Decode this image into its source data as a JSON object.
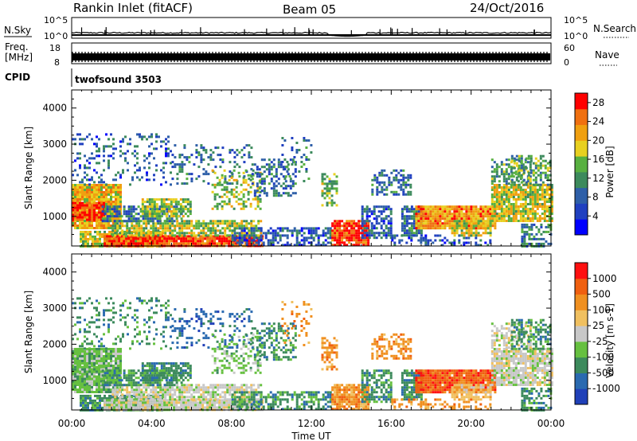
{
  "header": {
    "title": "Rankin Inlet (fitACF)",
    "beam": "Beam 05",
    "date": "24/Oct/2016"
  },
  "chart_data": [
    {
      "type": "line",
      "panel": "noise",
      "left_label": "N.Sky",
      "right_label": "N.Search",
      "yticks_left": [
        "10^5",
        "10^0"
      ],
      "yticks_right": [
        "10^5",
        "10^0"
      ],
      "baseline": "10^0"
    },
    {
      "type": "line",
      "panel": "frequency",
      "left_label_1": "Freq.",
      "left_label_2": "[MHz]",
      "right_label": "Nave",
      "yticks_left": [
        "18",
        "8"
      ],
      "yticks_right": [
        "60",
        "0"
      ],
      "ylim_left": [
        8,
        18
      ],
      "ylim_right": [
        0,
        60
      ]
    },
    {
      "type": "table",
      "panel": "cpid",
      "label": "CPID",
      "value": "twofsound 3503"
    },
    {
      "type": "heatmap",
      "panel": "power",
      "ylabel": "Slant Range [km]",
      "yticks": [
        "4000",
        "3000",
        "2000",
        "1000"
      ],
      "ylim": [
        180,
        4500
      ],
      "xticks": [
        "00:00",
        "04:00",
        "08:00",
        "12:00",
        "16:00",
        "20:00",
        "00:00"
      ],
      "xlim_hours": [
        0,
        24
      ],
      "colorbar_label": "Power [dB]",
      "colorbar_ticks": [
        "28",
        "24",
        "20",
        "16",
        "12",
        "8",
        "4"
      ],
      "colorbar_range": [
        0,
        30
      ],
      "colorbar_colors": [
        "#0000ff",
        "#2040c0",
        "#2e5fa8",
        "#3c8a5c",
        "#58b040",
        "#e8d020",
        "#f0a010",
        "#f07010",
        "#ff0000"
      ]
    },
    {
      "type": "heatmap",
      "panel": "velocity",
      "ylabel": "Slant Range [km]",
      "yticks": [
        "4000",
        "3000",
        "2000",
        "1000"
      ],
      "ylim": [
        180,
        4500
      ],
      "xticks": [
        "00:00",
        "04:00",
        "08:00",
        "12:00",
        "16:00",
        "20:00",
        "00:00"
      ],
      "xlim_hours": [
        0,
        24
      ],
      "xlabel": "Time UT",
      "colorbar_label": "Velocity [m s-1]",
      "colorbar_ticks": [
        "1000",
        "500",
        "100",
        "25",
        "-25",
        "-100",
        "-500",
        "-1000"
      ],
      "colorbar_colors": [
        "#2040b8",
        "#2a6ab0",
        "#3c8a5c",
        "#66c040",
        "#c8c8c8",
        "#f0c060",
        "#f09020",
        "#f06010",
        "#ff1010"
      ]
    }
  ]
}
